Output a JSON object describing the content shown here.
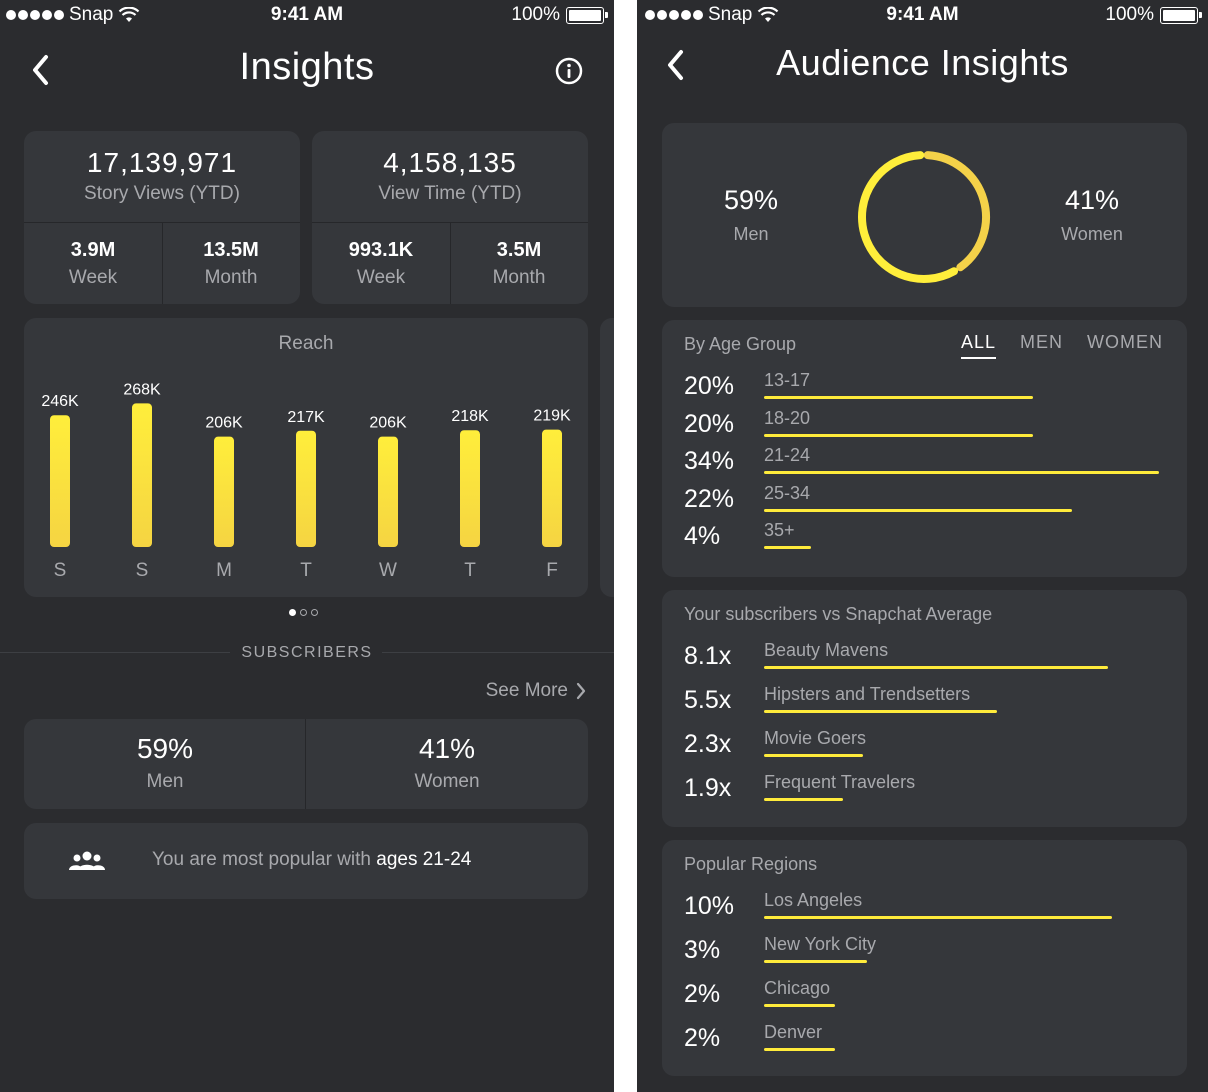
{
  "status_bar": {
    "carrier": "Snap",
    "time": "9:41 AM",
    "battery": "100%"
  },
  "insights": {
    "title": "Insights",
    "stats": [
      {
        "value": "17,139,971",
        "label": "Story Views (YTD)",
        "sub": [
          {
            "value": "3.9M",
            "label": "Week"
          },
          {
            "value": "13.5M",
            "label": "Month"
          }
        ]
      },
      {
        "value": "4,158,135",
        "label": "View Time (YTD)",
        "sub": [
          {
            "value": "993.1K",
            "label": "Week"
          },
          {
            "value": "3.5M",
            "label": "Month"
          }
        ]
      }
    ],
    "reach": {
      "title": "Reach"
    },
    "subscribers_label": "SUBSCRIBERS",
    "see_more": "See More",
    "gender": [
      {
        "value": "59%",
        "label": "Men"
      },
      {
        "value": "41%",
        "label": "Women"
      }
    ],
    "popular_prefix": "You are most popular with ",
    "popular_highlight": "ages 21-24"
  },
  "chart_data": {
    "type": "bar",
    "title": "Reach",
    "categories": [
      "S",
      "S",
      "M",
      "T",
      "W",
      "T",
      "F"
    ],
    "values": [
      246,
      268,
      206,
      217,
      206,
      218,
      219
    ],
    "value_labels": [
      "246K",
      "268K",
      "206K",
      "217K",
      "206K",
      "218K",
      "219K"
    ],
    "units": "K",
    "ylim": [
      0,
      280
    ],
    "grid": false,
    "colors": {
      "bar_top": "#ffee3b",
      "bar_bottom": "#f5d442"
    }
  },
  "audience": {
    "title": "Audience Insights",
    "men": {
      "value": "59%",
      "label": "Men",
      "fraction": 0.59
    },
    "women": {
      "value": "41%",
      "label": "Women",
      "fraction": 0.41
    },
    "age_group": {
      "title": "By Age Group",
      "tabs": [
        "ALL",
        "MEN",
        "WOMEN"
      ],
      "active_tab": "ALL",
      "rows": [
        {
          "pct": "20%",
          "label": "13-17",
          "fraction": 0.68
        },
        {
          "pct": "20%",
          "label": "18-20",
          "fraction": 0.68
        },
        {
          "pct": "34%",
          "label": "21-24",
          "fraction": 1.0
        },
        {
          "pct": "22%",
          "label": "25-34",
          "fraction": 0.78
        },
        {
          "pct": "4%",
          "label": "35+",
          "fraction": 0.12
        }
      ]
    },
    "vs_average": {
      "title": "Your subscribers vs Snapchat Average",
      "rows": [
        {
          "pct": "8.1x",
          "label": "Beauty Mavens",
          "fraction": 0.87
        },
        {
          "pct": "5.5x",
          "label": "Hipsters and Trendsetters",
          "fraction": 0.59
        },
        {
          "pct": "2.3x",
          "label": "Movie Goers",
          "fraction": 0.25
        },
        {
          "pct": "1.9x",
          "label": "Frequent Travelers",
          "fraction": 0.2
        }
      ]
    },
    "regions": {
      "title": "Popular Regions",
      "rows": [
        {
          "pct": "10%",
          "label": "Los Angeles",
          "fraction": 0.88
        },
        {
          "pct": "3%",
          "label": "New York City",
          "fraction": 0.26
        },
        {
          "pct": "2%",
          "label": "Chicago",
          "fraction": 0.18
        },
        {
          "pct": "2%",
          "label": "Denver",
          "fraction": 0.18
        }
      ]
    }
  },
  "colors": {
    "background": "#2b2c2f",
    "card": "#35373b",
    "accent": "#ffeb3b",
    "muted_text": "#a8a9ad"
  }
}
